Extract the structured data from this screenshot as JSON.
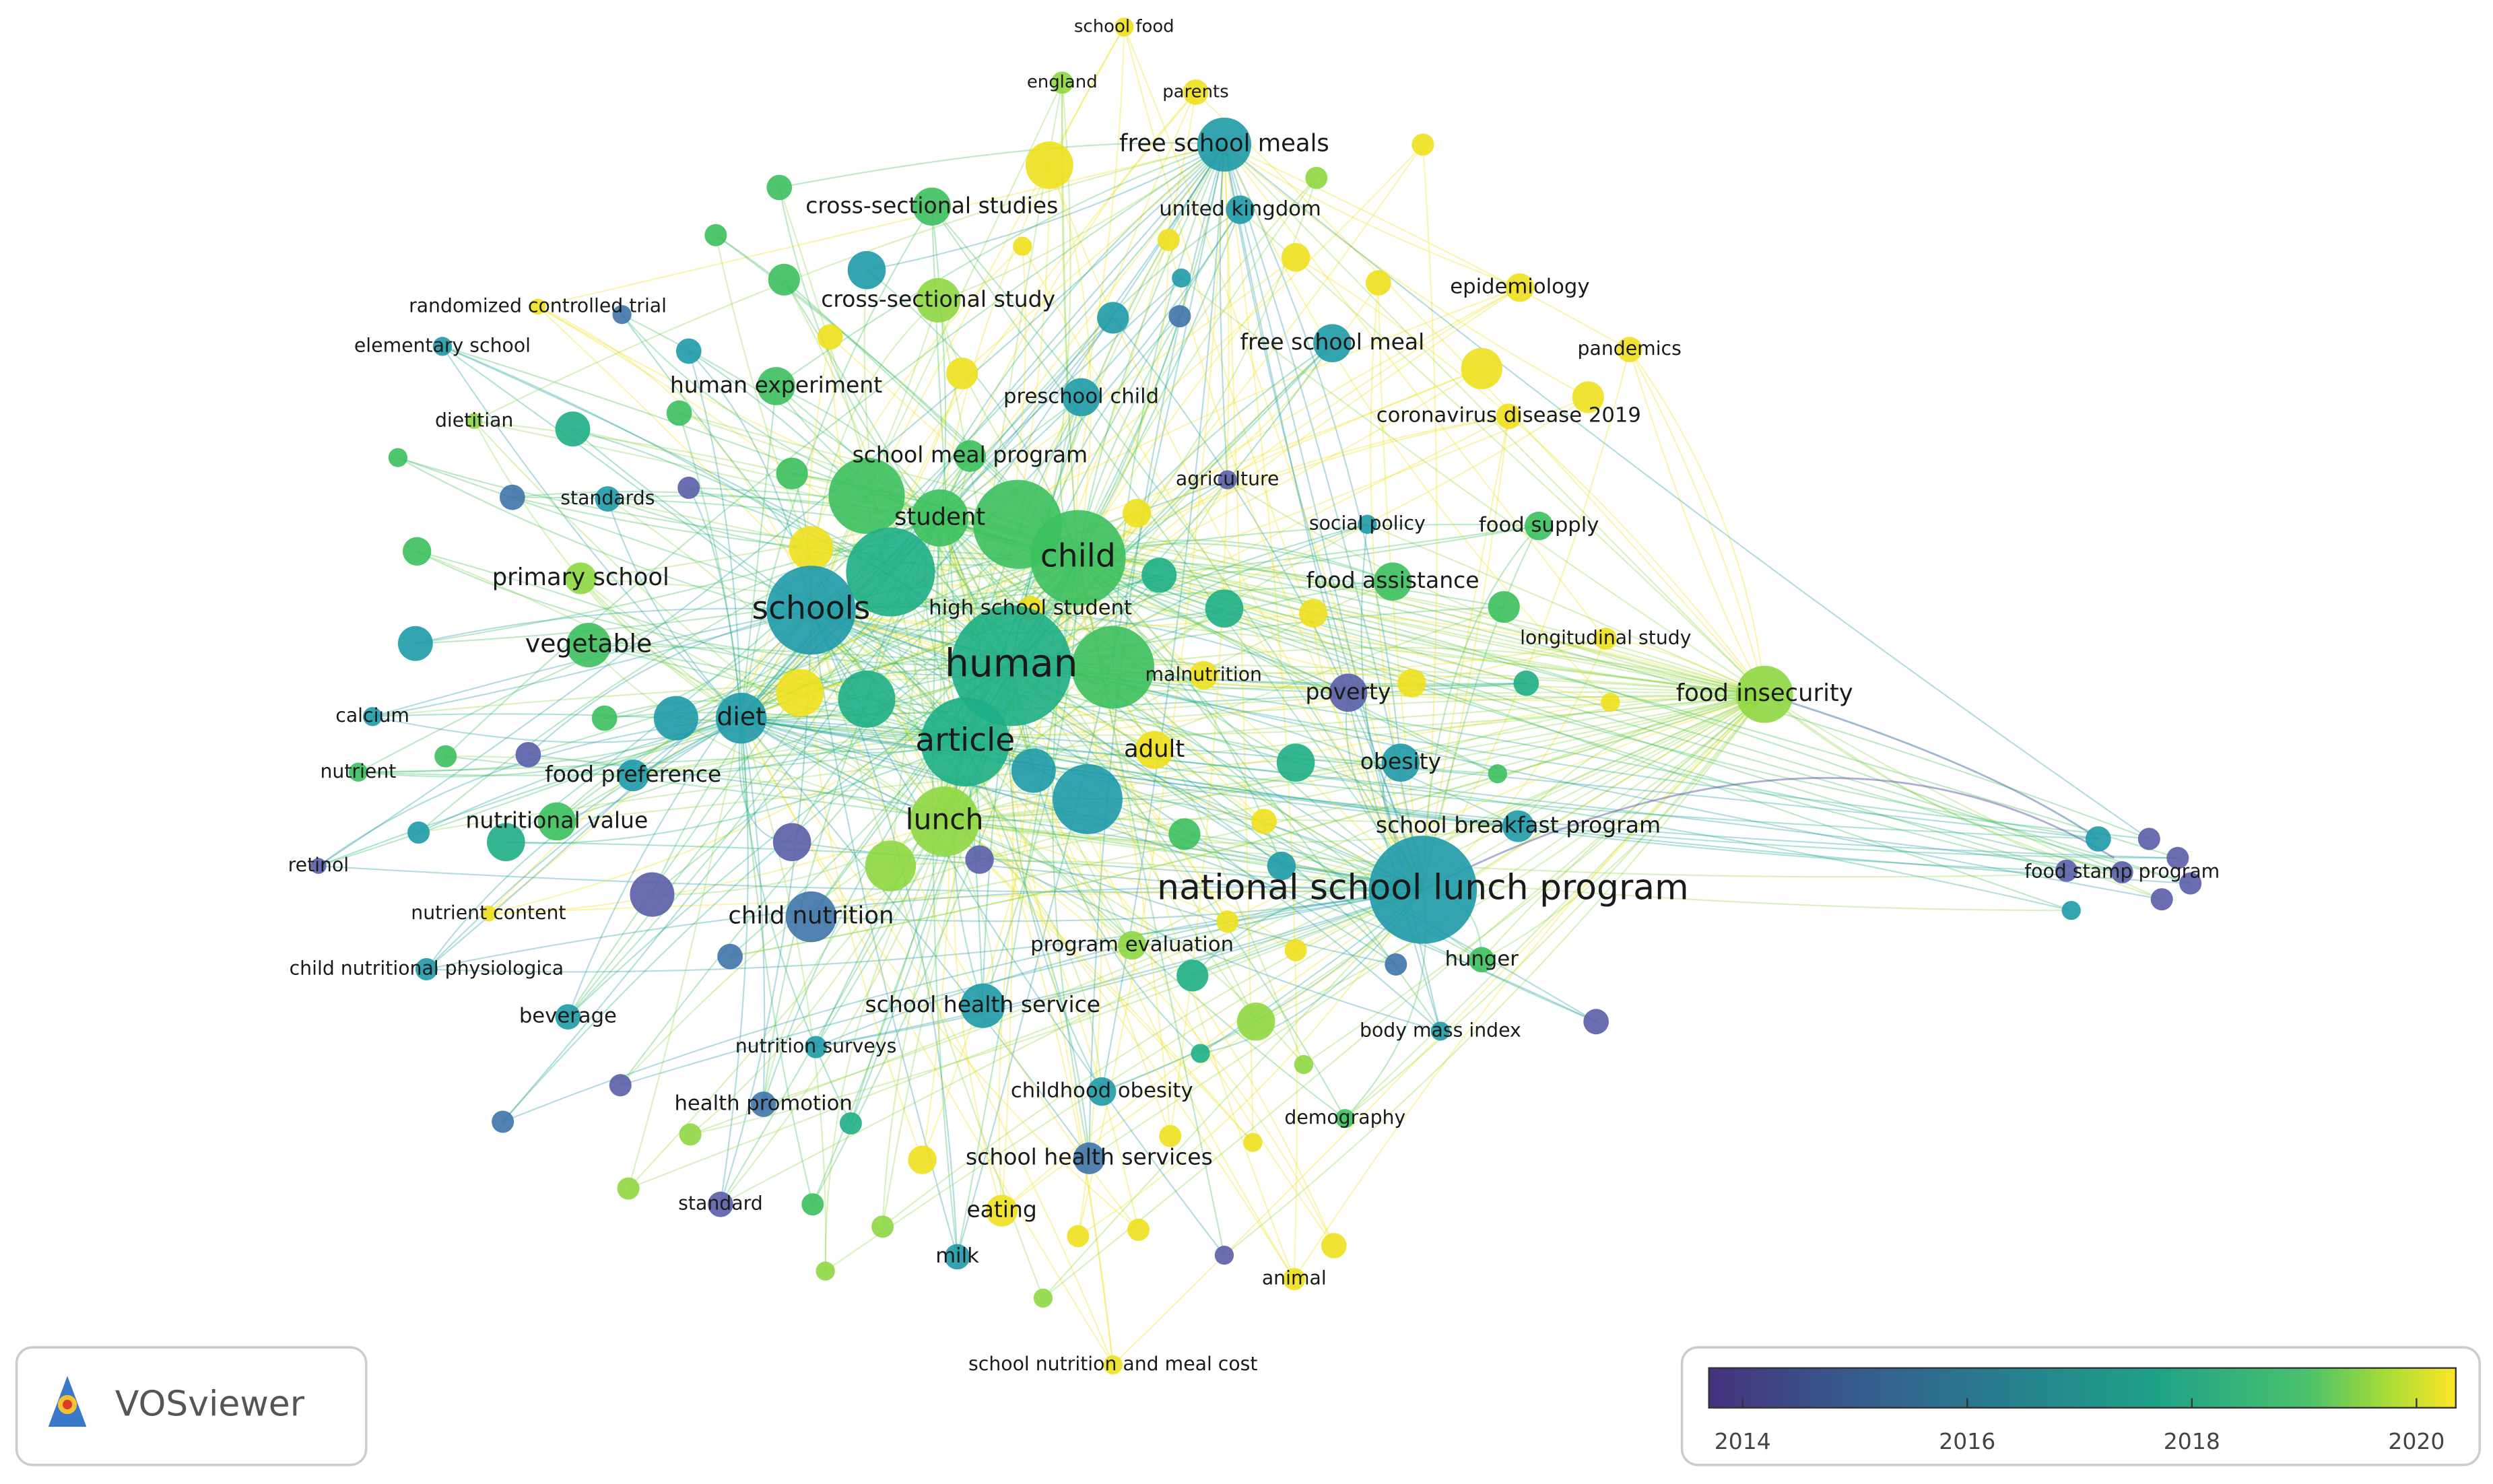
{
  "nodes": [
    {
      "label": "school food"
    },
    {
      "label": "england"
    },
    {
      "label": "parents"
    },
    {
      "label": "free school meals"
    },
    {
      "label": "cross-sectional studies"
    },
    {
      "label": "united kingdom"
    },
    {
      "label": "randomized controlled trial"
    },
    {
      "label": "cross-sectional study"
    },
    {
      "label": "epidemiology"
    },
    {
      "label": "elementary school"
    },
    {
      "label": "free school meal"
    },
    {
      "label": "pandemics"
    },
    {
      "label": "human experiment"
    },
    {
      "label": "preschool child"
    },
    {
      "label": "dietitian"
    },
    {
      "label": "coronavirus disease 2019"
    },
    {
      "label": "school meal program"
    },
    {
      "label": "agriculture"
    },
    {
      "label": "standards"
    },
    {
      "label": "student"
    },
    {
      "label": "social policy"
    },
    {
      "label": "food supply"
    },
    {
      "label": "child"
    },
    {
      "label": "primary school"
    },
    {
      "label": "food assistance"
    },
    {
      "label": "schools"
    },
    {
      "label": "high school student"
    },
    {
      "label": "vegetable"
    },
    {
      "label": "longitudinal study"
    },
    {
      "label": "human"
    },
    {
      "label": "malnutrition"
    },
    {
      "label": "poverty"
    },
    {
      "label": "food insecurity"
    },
    {
      "label": "calcium"
    },
    {
      "label": "diet"
    },
    {
      "label": "article"
    },
    {
      "label": "adult"
    },
    {
      "label": "obesity"
    },
    {
      "label": "nutrient"
    },
    {
      "label": "food preference"
    },
    {
      "label": "retinol"
    },
    {
      "label": "nutritional value"
    },
    {
      "label": "lunch"
    },
    {
      "label": "school breakfast program"
    },
    {
      "label": "food stamp program"
    },
    {
      "label": "national school lunch program"
    },
    {
      "label": "nutrient content"
    },
    {
      "label": "child nutrition"
    },
    {
      "label": "child nutritional physiologica"
    },
    {
      "label": "program evaluation"
    },
    {
      "label": "hunger"
    },
    {
      "label": "school health service"
    },
    {
      "label": "beverage"
    },
    {
      "label": "body mass index"
    },
    {
      "label": "nutrition surveys"
    },
    {
      "label": "childhood obesity"
    },
    {
      "label": "health promotion"
    },
    {
      "label": "demography"
    },
    {
      "label": "school health services"
    },
    {
      "label": "standard"
    },
    {
      "label": "eating"
    },
    {
      "label": "milk"
    },
    {
      "label": "animal"
    },
    {
      "label": "school nutrition and meal cost"
    }
  ],
  "legend": {
    "range": [
      2013.7,
      2020.35
    ],
    "ticks": [
      2014,
      2016,
      2018,
      2020
    ]
  },
  "logo": "VOSviewer"
}
